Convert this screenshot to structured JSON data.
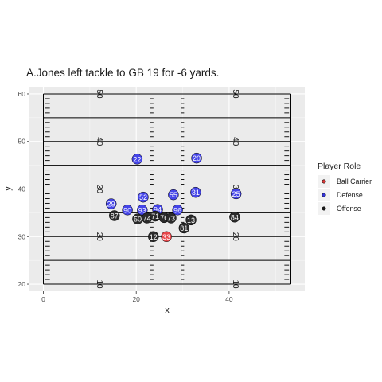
{
  "chart_data": {
    "type": "scatter",
    "title": "A.Jones left tackle to GB 19 for -6 yards.",
    "xlabel": "x",
    "ylabel": "y",
    "xlim": [
      -3,
      56.3
    ],
    "ylim": [
      18.5,
      61.5
    ],
    "x_ticks": [
      0,
      20,
      40
    ],
    "y_ticks": [
      20,
      30,
      40,
      50,
      60
    ],
    "field": {
      "x_min": 0,
      "x_max": 53.3,
      "yard_lines": [
        20,
        25,
        30,
        35,
        40,
        45,
        50,
        55,
        60
      ],
      "left_hash_x": 23.36,
      "right_hash_x": 29.96,
      "sideline_tick_inner": [
        0,
        53.3
      ],
      "numbers_left_x": 12,
      "numbers_right_x": 41.3,
      "numbers": [
        {
          "y": 20,
          "label": "10"
        },
        {
          "y": 30,
          "label": "20"
        },
        {
          "y": 40,
          "label": "30"
        },
        {
          "y": 50,
          "label": "40"
        },
        {
          "y": 60,
          "label": "50"
        }
      ]
    },
    "legend": {
      "title": "Player Role",
      "position": "right",
      "entries": [
        {
          "label": "Ball Carrier",
          "color": "#e03a3a"
        },
        {
          "label": "Defense",
          "color": "#3333dd"
        },
        {
          "label": "Offense",
          "color": "#1a1a1a"
        }
      ]
    },
    "colors": {
      "Ball Carrier": "#e8474a",
      "Defense": "#4545e8",
      "Offense": "#2b2b2b"
    },
    "points": [
      {
        "jersey": "22",
        "role": "Defense",
        "x": 20.2,
        "y": 46.3
      },
      {
        "jersey": "20",
        "role": "Defense",
        "x": 33.0,
        "y": 46.5
      },
      {
        "jersey": "31",
        "role": "Defense",
        "x": 32.8,
        "y": 39.3
      },
      {
        "jersey": "25",
        "role": "Defense",
        "x": 41.5,
        "y": 39.0
      },
      {
        "jersey": "52",
        "role": "Defense",
        "x": 21.5,
        "y": 38.3
      },
      {
        "jersey": "55",
        "role": "Defense",
        "x": 28.0,
        "y": 38.8
      },
      {
        "jersey": "29",
        "role": "Defense",
        "x": 14.6,
        "y": 36.9
      },
      {
        "jersey": "90",
        "role": "Defense",
        "x": 18.1,
        "y": 35.6
      },
      {
        "jersey": "93",
        "role": "Defense",
        "x": 21.3,
        "y": 35.6
      },
      {
        "jersey": "94",
        "role": "Defense",
        "x": 24.6,
        "y": 35.7
      },
      {
        "jersey": "96",
        "role": "Defense",
        "x": 28.9,
        "y": 35.6
      },
      {
        "jersey": "87",
        "role": "Offense",
        "x": 15.3,
        "y": 34.4
      },
      {
        "jersey": "50",
        "role": "Offense",
        "x": 20.3,
        "y": 33.7
      },
      {
        "jersey": "74",
        "role": "Offense",
        "x": 22.3,
        "y": 33.9
      },
      {
        "jersey": "71",
        "role": "Offense",
        "x": 24.1,
        "y": 34.3
      },
      {
        "jersey": "76",
        "role": "Offense",
        "x": 26.0,
        "y": 34.0
      },
      {
        "jersey": "73",
        "role": "Offense",
        "x": 27.5,
        "y": 33.9
      },
      {
        "jersey": "13",
        "role": "Offense",
        "x": 31.8,
        "y": 33.5
      },
      {
        "jersey": "81",
        "role": "Offense",
        "x": 30.3,
        "y": 31.8
      },
      {
        "jersey": "84",
        "role": "Offense",
        "x": 41.2,
        "y": 34.1
      },
      {
        "jersey": "12",
        "role": "Offense",
        "x": 23.7,
        "y": 30.0
      },
      {
        "jersey": "33",
        "role": "Ball Carrier",
        "x": 26.5,
        "y": 30.0
      }
    ]
  }
}
